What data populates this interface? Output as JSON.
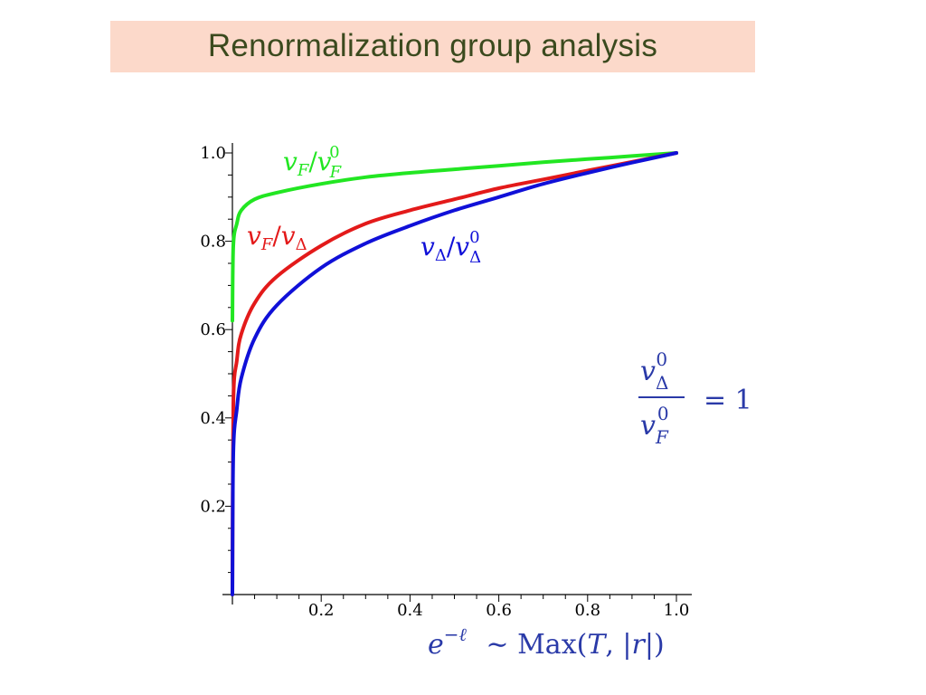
{
  "title": "Renormalization group analysis",
  "colors": {
    "banner": "#fcd9ca",
    "title_text": "#3b4a1e",
    "green": "#22e622",
    "red": "#e31a1a",
    "blue": "#1010d8",
    "annotation_blue": "#2a3aa8"
  },
  "chart_data": {
    "type": "line",
    "title": "Renormalization group analysis",
    "xlabel": "e^{-ℓ} ~ Max(T, |r|)",
    "ylabel": "",
    "xlim": [
      0,
      1.0
    ],
    "ylim": [
      0,
      1.0
    ],
    "x_ticks": [
      "0.2",
      "0.4",
      "0.6",
      "0.8",
      "1.0"
    ],
    "y_ticks": [
      "0.2",
      "0.4",
      "0.6",
      "0.8",
      "1.0"
    ],
    "grid": false,
    "series": [
      {
        "name": "v_F/v_F^0",
        "color": "#22e622",
        "x": [
          0.0,
          0.002,
          0.01,
          0.02,
          0.05,
          0.1,
          0.2,
          0.3,
          0.4,
          0.5,
          0.6,
          0.7,
          0.8,
          0.9,
          1.0
        ],
        "y": [
          0.62,
          0.79,
          0.84,
          0.87,
          0.895,
          0.91,
          0.93,
          0.945,
          0.955,
          0.963,
          0.971,
          0.979,
          0.986,
          0.993,
          1.0
        ]
      },
      {
        "name": "v_F/v_Δ",
        "color": "#e31a1a",
        "x": [
          0.0,
          0.002,
          0.01,
          0.02,
          0.05,
          0.1,
          0.2,
          0.3,
          0.4,
          0.5,
          0.6,
          0.7,
          0.8,
          0.9,
          1.0
        ],
        "y": [
          0.0,
          0.43,
          0.53,
          0.59,
          0.66,
          0.72,
          0.79,
          0.84,
          0.87,
          0.895,
          0.92,
          0.94,
          0.96,
          0.98,
          1.0
        ]
      },
      {
        "name": "v_Δ/v_Δ^0",
        "color": "#1010d8",
        "x": [
          0.0,
          0.002,
          0.01,
          0.02,
          0.05,
          0.1,
          0.2,
          0.3,
          0.4,
          0.5,
          0.6,
          0.7,
          0.8,
          0.9,
          1.0
        ],
        "y": [
          0.0,
          0.32,
          0.42,
          0.49,
          0.58,
          0.655,
          0.74,
          0.795,
          0.835,
          0.87,
          0.9,
          0.93,
          0.955,
          0.978,
          1.0
        ]
      }
    ],
    "annotation": "v_Δ^0 / v_F^0 = 1"
  }
}
